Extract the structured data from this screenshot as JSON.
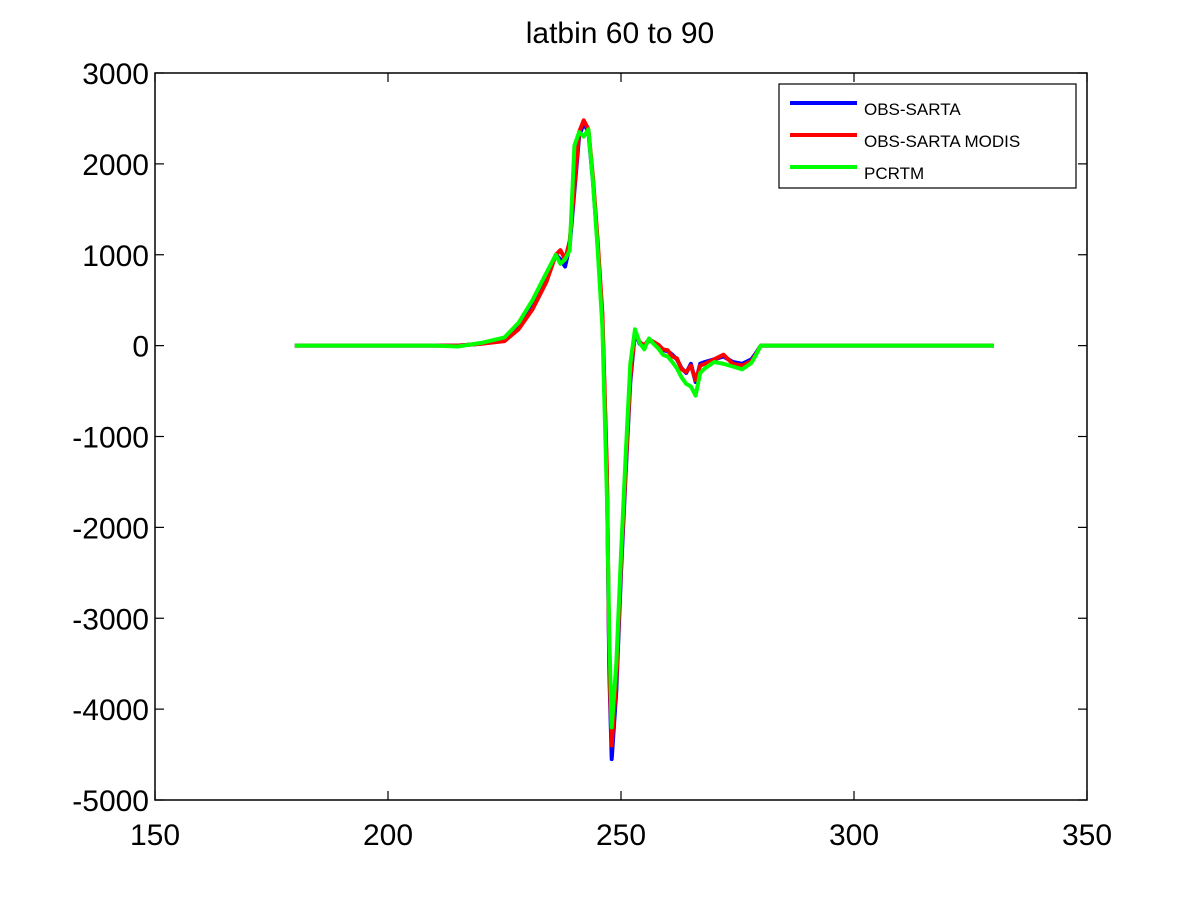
{
  "chart_data": {
    "type": "line",
    "title": "latbin 60  to 90",
    "xlabel": "",
    "ylabel": "",
    "xlim": [
      150,
      350
    ],
    "ylim": [
      -5000,
      3000
    ],
    "xticks": [
      150,
      200,
      250,
      300,
      350
    ],
    "yticks": [
      3000,
      2000,
      1000,
      0,
      -1000,
      -2000,
      -3000,
      -4000,
      -5000
    ],
    "grid": false,
    "legend_position": "top-right",
    "series": [
      {
        "name": "OBS-SARTA",
        "color": "#0000ff",
        "x": [
          180,
          210,
          215,
          220,
          225,
          228,
          231,
          234,
          236,
          237,
          238,
          239,
          240,
          241,
          242,
          243,
          244,
          245,
          246,
          247,
          247.5,
          248,
          249,
          250,
          251,
          252,
          253,
          254,
          255,
          256,
          257,
          258,
          259,
          260,
          261,
          262,
          263,
          264,
          265,
          266,
          267,
          268,
          270,
          272,
          274,
          276,
          278,
          279,
          280,
          282,
          330
        ],
        "y": [
          0,
          0,
          0,
          20,
          60,
          200,
          450,
          750,
          1000,
          950,
          870,
          1100,
          1700,
          2300,
          2450,
          2350,
          1800,
          1100,
          300,
          -1500,
          -3600,
          -4550,
          -3800,
          -2500,
          -1400,
          -400,
          150,
          20,
          -10,
          60,
          30,
          0,
          -50,
          -60,
          -100,
          -150,
          -250,
          -300,
          -200,
          -400,
          -200,
          -180,
          -150,
          -120,
          -180,
          -200,
          -150,
          -80,
          0,
          0,
          0
        ]
      },
      {
        "name": "OBS-SARTA MODIS",
        "color": "#ff0000",
        "x": [
          180,
          210,
          215,
          220,
          225,
          228,
          231,
          234,
          236,
          237,
          238,
          239,
          240,
          241,
          242,
          243,
          244,
          245,
          246,
          247,
          247.5,
          248,
          249,
          250,
          251,
          252,
          253,
          254,
          255,
          256,
          257,
          258,
          259,
          260,
          261,
          262,
          263,
          264,
          265,
          266,
          267,
          268,
          270,
          272,
          274,
          276,
          278,
          279,
          280,
          282,
          330
        ],
        "y": [
          0,
          0,
          0,
          20,
          50,
          180,
          400,
          700,
          1000,
          1050,
          950,
          1150,
          1750,
          2350,
          2480,
          2380,
          1850,
          1150,
          350,
          -1400,
          -3500,
          -4400,
          -3700,
          -2400,
          -1350,
          -350,
          150,
          40,
          0,
          70,
          40,
          10,
          -40,
          -50,
          -120,
          -140,
          -260,
          -290,
          -220,
          -380,
          -220,
          -200,
          -150,
          -100,
          -200,
          -220,
          -170,
          -90,
          0,
          0,
          0
        ]
      },
      {
        "name": "PCRTM",
        "color": "#00ff00",
        "x": [
          180,
          210,
          215,
          220,
          225,
          228,
          231,
          234,
          236,
          237,
          238,
          239,
          240,
          241,
          242,
          243,
          244,
          245,
          246,
          247,
          247.5,
          248,
          249,
          250,
          251,
          252,
          253,
          254,
          255,
          256,
          257,
          258,
          259,
          260,
          261,
          262,
          263,
          264,
          265,
          266,
          267,
          268,
          270,
          272,
          274,
          276,
          278,
          279,
          280,
          282,
          330
        ],
        "y": [
          0,
          0,
          -10,
          30,
          90,
          250,
          500,
          800,
          1000,
          900,
          950,
          1050,
          2200,
          2350,
          2300,
          2380,
          1800,
          1050,
          200,
          -1700,
          -3200,
          -4200,
          -3500,
          -2300,
          -1200,
          -200,
          180,
          30,
          -40,
          80,
          20,
          -30,
          -100,
          -120,
          -180,
          -250,
          -350,
          -420,
          -450,
          -550,
          -300,
          -250,
          -180,
          -200,
          -230,
          -260,
          -190,
          -100,
          0,
          0,
          0
        ]
      }
    ]
  }
}
